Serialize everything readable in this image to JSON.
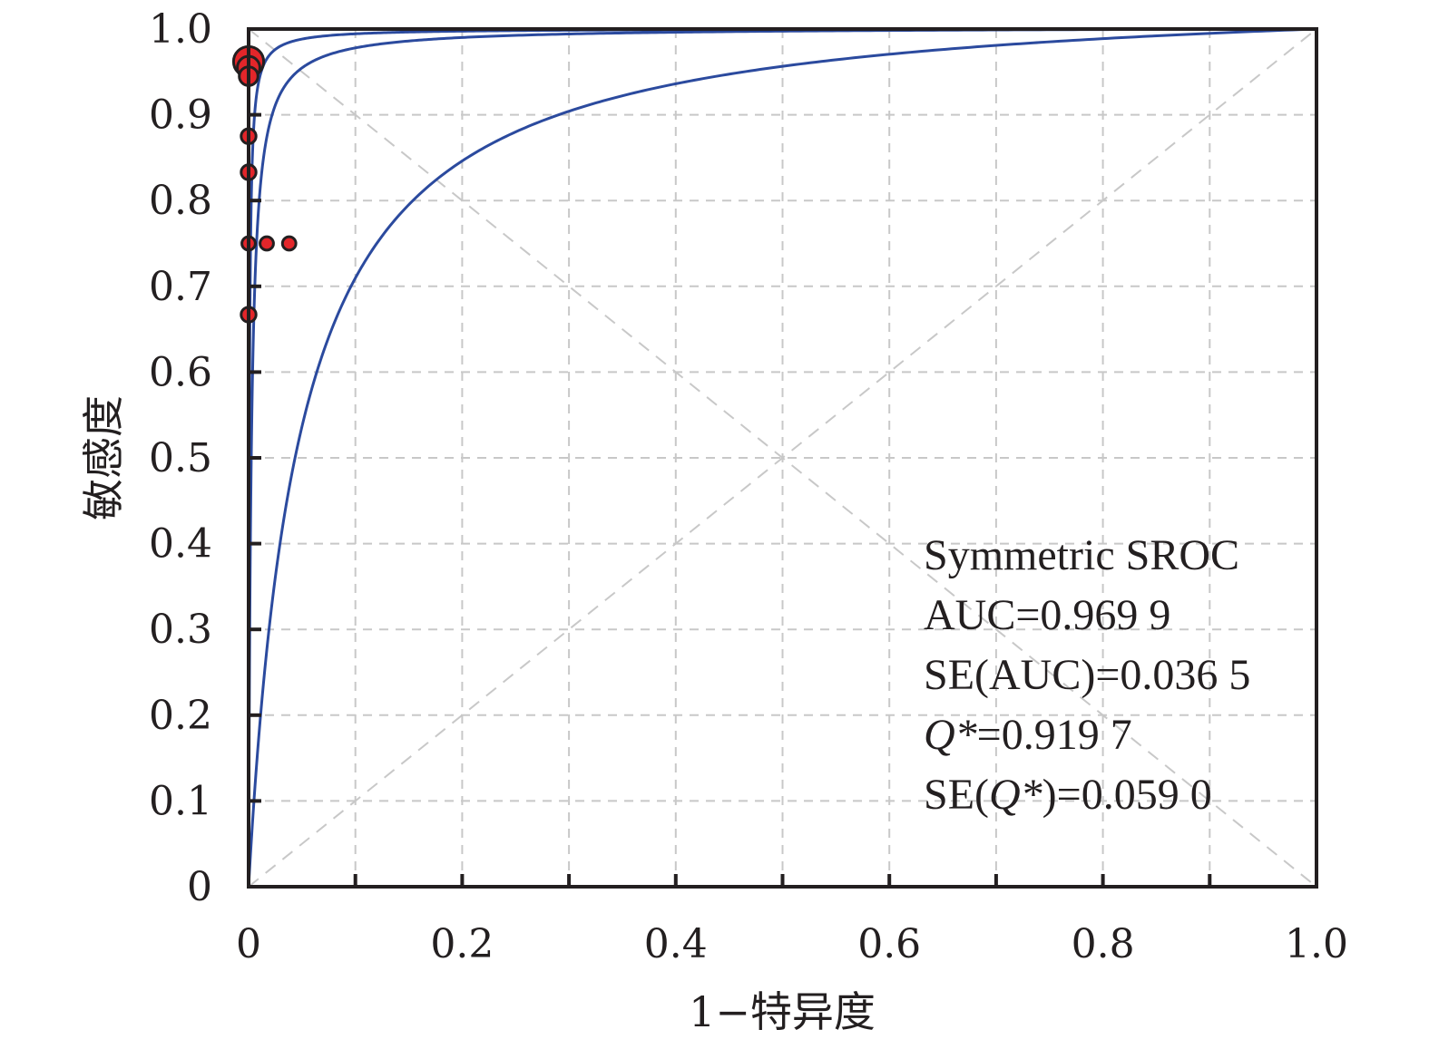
{
  "chart_data": {
    "type": "scatter",
    "title": "",
    "xlabel": "1−特异度",
    "ylabel": "敏感度",
    "xlim": [
      0,
      1.0
    ],
    "ylim": [
      0,
      1.0
    ],
    "x_ticks": [
      0,
      0.1,
      0.2,
      0.3,
      0.4,
      0.5,
      0.6,
      0.7,
      0.8,
      0.9,
      1.0
    ],
    "y_ticks": [
      0,
      0.1,
      0.2,
      0.3,
      0.4,
      0.5,
      0.6,
      0.7,
      0.8,
      0.9,
      1.0
    ],
    "x_tick_labels": [
      "0",
      "0.2",
      "0.4",
      "0.6",
      "0.8",
      "1.0"
    ],
    "y_tick_labels": [
      "0",
      "0.1",
      "0.2",
      "0.3",
      "0.4",
      "0.5",
      "0.6",
      "0.7",
      "0.8",
      "0.9",
      "1.0"
    ],
    "grid": true,
    "reference_lines": [
      "diagonal",
      "anti-diagonal"
    ],
    "curves": [
      {
        "type": "sroc",
        "dor": 1600,
        "color": "#2b4a9e"
      },
      {
        "type": "sroc",
        "dor": 400,
        "color": "#2b4a9e"
      },
      {
        "type": "sroc",
        "dor": 22,
        "color": "#2b4a9e"
      }
    ],
    "points": [
      {
        "x": 0.0,
        "y": 0.962,
        "size": 3
      },
      {
        "x": 0.0,
        "y": 0.955,
        "size": 2
      },
      {
        "x": 0.0,
        "y": 0.945,
        "size": 1.5
      },
      {
        "x": 0.0,
        "y": 0.875,
        "size": 1
      },
      {
        "x": 0.0,
        "y": 0.833,
        "size": 1
      },
      {
        "x": 0.0,
        "y": 0.75,
        "size": 0.8
      },
      {
        "x": 0.017,
        "y": 0.75,
        "size": 0.8
      },
      {
        "x": 0.038,
        "y": 0.75,
        "size": 0.8
      },
      {
        "x": 0.0,
        "y": 0.667,
        "size": 1
      }
    ],
    "point_color": "#e3262a",
    "annotations": {
      "model": "Symmetric SROC",
      "auc": "AUC=0.969 9",
      "se_auc": "SE(AUC)=0.036 5",
      "q_sym": "Q*",
      "q_val": "=0.919 7",
      "se_q_prefix": "SE(",
      "se_q_sym": "Q*",
      "se_q_suffix": ")=0.059 0"
    }
  }
}
